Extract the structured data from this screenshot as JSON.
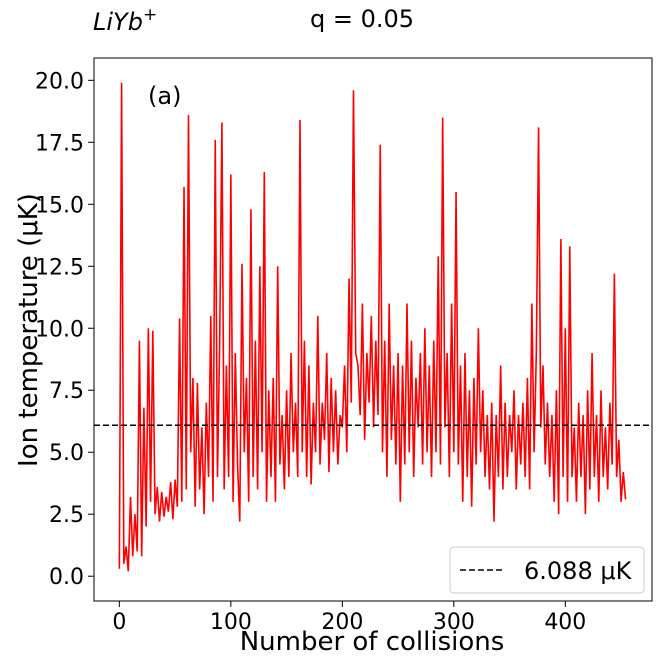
{
  "chart_data": {
    "type": "line",
    "title": {
      "base": "LiYb",
      "sup": "+"
    },
    "subtitle": "q = 0.05",
    "annotation": "(a)",
    "xlabel": "Number of collisions",
    "ylabel": "Ion temperature  (μK)",
    "xlim": [
      -22.75,
      477.75
    ],
    "ylim": [
      -1.0,
      20.9
    ],
    "xticks": [
      0,
      100,
      200,
      300,
      400
    ],
    "yticks": [
      {
        "value": 0,
        "label": "0.0"
      },
      {
        "value": 2.5,
        "label": "2.5"
      },
      {
        "value": 5,
        "label": "5.0"
      },
      {
        "value": 7.5,
        "label": "7.5"
      },
      {
        "value": 10,
        "label": "10.0"
      },
      {
        "value": 12.5,
        "label": "12.5"
      },
      {
        "value": 15,
        "label": "15.0"
      },
      {
        "value": 17.5,
        "label": "17.5"
      },
      {
        "value": 20,
        "label": "20.0"
      }
    ],
    "hline": {
      "name": "6.088 μK",
      "value": 6.088,
      "color": "#000000"
    },
    "legend": "lower right",
    "x": [
      0,
      2,
      4,
      6,
      8,
      10,
      12,
      14,
      16,
      18,
      20,
      22,
      24,
      26,
      28,
      30,
      32,
      34,
      36,
      38,
      40,
      42,
      44,
      46,
      48,
      50,
      52,
      54,
      56,
      58,
      60,
      62,
      64,
      66,
      68,
      70,
      72,
      74,
      76,
      78,
      80,
      82,
      84,
      86,
      88,
      90,
      92,
      94,
      96,
      98,
      100,
      102,
      104,
      106,
      108,
      110,
      112,
      114,
      116,
      118,
      120,
      122,
      124,
      126,
      128,
      130,
      132,
      134,
      136,
      138,
      140,
      142,
      144,
      146,
      148,
      150,
      152,
      154,
      156,
      158,
      160,
      162,
      164,
      166,
      168,
      170,
      172,
      174,
      176,
      178,
      180,
      182,
      184,
      186,
      188,
      190,
      192,
      194,
      196,
      198,
      200,
      202,
      204,
      206,
      208,
      210,
      212,
      214,
      216,
      218,
      220,
      222,
      224,
      226,
      228,
      230,
      232,
      234,
      236,
      238,
      240,
      242,
      244,
      246,
      248,
      250,
      252,
      254,
      256,
      258,
      260,
      262,
      264,
      266,
      268,
      270,
      272,
      274,
      276,
      278,
      280,
      282,
      284,
      286,
      288,
      290,
      292,
      294,
      296,
      298,
      300,
      302,
      304,
      306,
      308,
      310,
      312,
      314,
      316,
      318,
      320,
      322,
      324,
      326,
      328,
      330,
      332,
      334,
      336,
      338,
      340,
      342,
      344,
      346,
      348,
      350,
      352,
      354,
      356,
      358,
      360,
      362,
      364,
      366,
      368,
      370,
      372,
      374,
      376,
      378,
      380,
      382,
      384,
      386,
      388,
      390,
      392,
      394,
      396,
      398,
      400,
      402,
      404,
      406,
      408,
      410,
      412,
      414,
      416,
      418,
      420,
      422,
      424,
      426,
      428,
      430,
      432,
      434,
      436,
      438,
      440,
      442,
      444,
      446,
      448,
      450,
      452,
      454
    ],
    "series": [
      {
        "color": "#ff0000",
        "values": [
          0.3,
          19.9,
          0.5,
          1.2,
          0.2,
          3.2,
          0.8,
          2.5,
          1.0,
          9.5,
          0.8,
          6.8,
          2.0,
          10.0,
          3.0,
          9.9,
          2.5,
          3.6,
          2.2,
          3.4,
          2.4,
          3.2,
          2.6,
          3.8,
          2.3,
          3.9,
          2.8,
          10.4,
          3.0,
          15.7,
          3.5,
          18.6,
          5.0,
          8.0,
          2.8,
          7.8,
          3.5,
          6.0,
          2.5,
          7.0,
          4.0,
          10.5,
          3.0,
          17.6,
          4.0,
          9.5,
          18.3,
          3.5,
          8.5,
          4.0,
          16.2,
          3.0,
          9.0,
          4.5,
          2.2,
          12.6,
          5.0,
          8.0,
          3.0,
          14.8,
          4.0,
          9.5,
          3.5,
          12.5,
          5.0,
          16.3,
          3.0,
          7.5,
          4.0,
          8.0,
          3.0,
          12.5,
          4.5,
          6.5,
          3.5,
          7.5,
          4.0,
          9.0,
          5.0,
          7.0,
          4.0,
          18.4,
          5.0,
          9.5,
          4.0,
          8.5,
          3.7,
          7.0,
          5.0,
          10.5,
          4.5,
          7.0,
          5.5,
          9.0,
          4.2,
          8.0,
          5.0,
          7.5,
          4.5,
          6.5,
          6.0,
          8.5,
          5.0,
          12.0,
          7.0,
          19.6,
          9.0,
          8.5,
          6.5,
          11.0,
          5.5,
          9.0,
          7.0,
          10.5,
          6.0,
          9.5,
          6.5,
          17.4,
          5.0,
          9.5,
          4.0,
          11.0,
          5.5,
          8.5,
          4.5,
          9.0,
          3.0,
          8.5,
          4.5,
          11.0,
          5.0,
          9.5,
          4.0,
          8.0,
          6.0,
          9.0,
          4.5,
          10.0,
          5.0,
          8.5,
          4.0,
          9.5,
          5.0,
          12.9,
          4.5,
          18.5,
          6.0,
          9.0,
          4.0,
          11.0,
          5.0,
          15.5,
          4.5,
          8.5,
          3.0,
          9.0,
          4.0,
          7.5,
          2.8,
          8.0,
          4.5,
          10.0,
          5.0,
          7.5,
          4.0,
          6.5,
          3.5,
          7.0,
          2.2,
          6.5,
          4.0,
          8.5,
          3.5,
          7.0,
          4.0,
          6.5,
          5.0,
          7.5,
          3.5,
          6.5,
          4.5,
          7.0,
          4.0,
          8.0,
          3.5,
          11.0,
          5.0,
          9.0,
          18.1,
          6.0,
          8.5,
          4.5,
          7.0,
          4.0,
          6.5,
          3.0,
          7.5,
          2.5,
          13.6,
          4.0,
          10.0,
          3.0,
          13.3,
          4.0,
          6.0,
          3.0,
          7.0,
          4.0,
          6.5,
          2.5,
          7.5,
          3.5,
          9.0,
          4.0,
          6.5,
          3.0,
          7.5,
          4.0,
          6.0,
          3.5,
          7.0,
          4.5,
          12.2,
          4.0,
          5.5,
          3.0,
          4.2,
          3.1
        ]
      }
    ]
  }
}
